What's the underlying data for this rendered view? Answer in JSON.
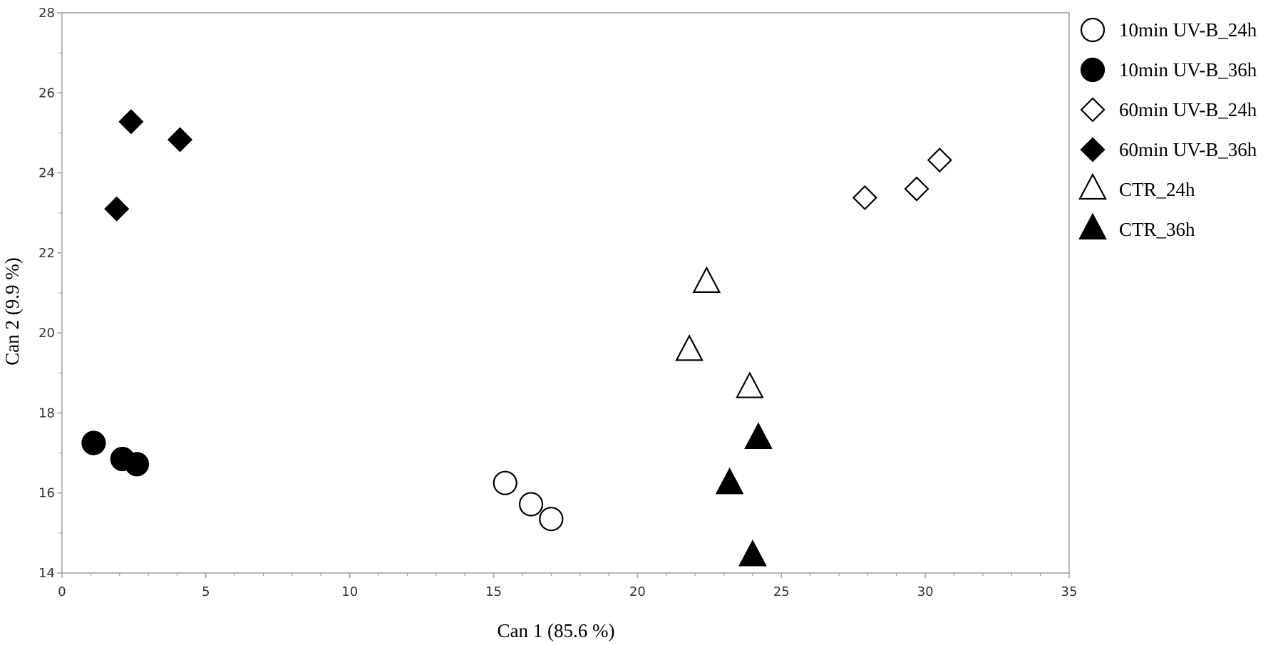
{
  "chart_data": {
    "type": "scatter",
    "xlabel": "Can 1 (85.6 %)",
    "ylabel": "Can 2 (9.9 %)",
    "xlim": [
      0,
      35
    ],
    "ylim": [
      14,
      28
    ],
    "xticks": [
      0,
      5,
      10,
      15,
      20,
      25,
      30,
      35
    ],
    "yticks": [
      14,
      16,
      18,
      20,
      22,
      24,
      26,
      28
    ],
    "grid": false,
    "legend_position": "right",
    "series": [
      {
        "name": "10min UV-B_24h",
        "marker": "circle-open",
        "color": "#000000",
        "points": [
          [
            15.4,
            16.25
          ],
          [
            16.3,
            15.72
          ],
          [
            17.0,
            15.35
          ]
        ]
      },
      {
        "name": "10min UV-B_36h",
        "marker": "circle-filled",
        "color": "#000000",
        "points": [
          [
            1.1,
            17.25
          ],
          [
            2.1,
            16.85
          ],
          [
            2.6,
            16.72
          ]
        ]
      },
      {
        "name": "60min UV-B_24h",
        "marker": "diamond-open",
        "color": "#000000",
        "points": [
          [
            27.9,
            23.38
          ],
          [
            29.7,
            23.6
          ],
          [
            30.5,
            24.32
          ]
        ]
      },
      {
        "name": "60min UV-B_36h",
        "marker": "diamond-filled",
        "color": "#000000",
        "points": [
          [
            1.9,
            23.1
          ],
          [
            2.4,
            25.28
          ],
          [
            4.1,
            24.83
          ]
        ]
      },
      {
        "name": "CTR_24h",
        "marker": "triangle-open",
        "color": "#000000",
        "points": [
          [
            22.4,
            21.25
          ],
          [
            21.8,
            19.55
          ],
          [
            23.9,
            18.62
          ]
        ]
      },
      {
        "name": "CTR_36h",
        "marker": "triangle-filled",
        "color": "#000000",
        "points": [
          [
            24.2,
            17.35
          ],
          [
            23.2,
            16.22
          ],
          [
            24.0,
            14.42
          ]
        ]
      }
    ]
  }
}
